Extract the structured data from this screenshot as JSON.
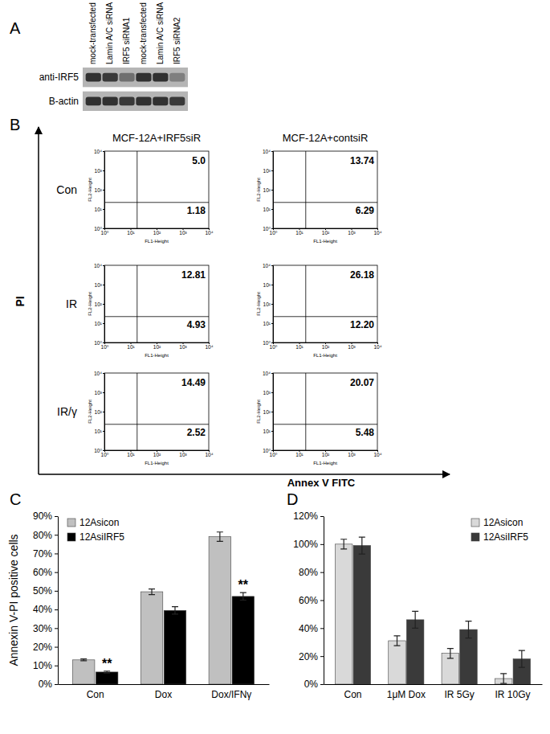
{
  "chart_data": [
    {
      "type": "blot",
      "title": "A",
      "categories": [
        "mock-transfected",
        "Lamin A/C siRNA",
        "IRF5 siRNA1",
        "mock-transfected",
        "Lamin A/C siRNA",
        "IRF5 siRNA2"
      ],
      "series": [
        {
          "name": "anti-IRF5",
          "values": [
            0.85,
            0.8,
            0.45,
            0.85,
            0.85,
            0.35
          ]
        },
        {
          "name": "B-actin",
          "values": [
            0.85,
            0.85,
            0.8,
            0.85,
            0.85,
            0.8
          ]
        }
      ]
    },
    {
      "type": "flow_cytometry",
      "title": "B",
      "x_label": "Annex V FITC",
      "y_label": "PI",
      "plot_x_label": "FL1-Height",
      "plot_y_label": "FL2-Height",
      "columns": [
        "MCF-12A+IRF5siR",
        "MCF-12A+contsiR"
      ],
      "rows": [
        "Con",
        "IR",
        "IR/γ"
      ],
      "log": true,
      "xlim": [
        1,
        10000
      ],
      "ylim": [
        1,
        10000
      ],
      "xticks": [
        {
          "value": 1,
          "label": "10⁰"
        },
        {
          "value": 10,
          "label": "10¹"
        },
        {
          "value": 100,
          "label": "10²"
        },
        {
          "value": 1000,
          "label": "10³"
        },
        {
          "value": 10000,
          "label": "10⁴"
        }
      ],
      "yticks": [
        {
          "value": 1,
          "label": "10⁰"
        },
        {
          "value": 10,
          "label": "10¹"
        },
        {
          "value": 100,
          "label": "10²"
        },
        {
          "value": 1000,
          "label": "10³"
        },
        {
          "value": 10000,
          "label": "10⁴"
        }
      ],
      "gate": {
        "x": 18,
        "y": 22
      },
      "data_labels": true,
      "cells": [
        [
          {
            "values": [
              5.0,
              1.18
            ],
            "value_labels": [
              "5.0",
              "1.18"
            ]
          },
          {
            "values": [
              13.74,
              6.29
            ],
            "value_labels": [
              "13.74",
              "6.29"
            ]
          }
        ],
        [
          {
            "values": [
              12.81,
              4.93
            ],
            "value_labels": [
              "12.81",
              "4.93"
            ]
          },
          {
            "values": [
              26.18,
              12.2
            ],
            "value_labels": [
              "26.18",
              "12.20"
            ]
          }
        ],
        [
          {
            "values": [
              14.49,
              2.52
            ],
            "value_labels": [
              "14.49",
              "2.52"
            ]
          },
          {
            "values": [
              20.07,
              5.48
            ],
            "value_labels": [
              "20.07",
              "5.48"
            ]
          }
        ]
      ]
    },
    {
      "type": "bar",
      "title": "C",
      "y_label": "Annexin V-PI positive cells",
      "categories": [
        "Con",
        "Dox",
        "Dox/IFNγ"
      ],
      "series": [
        {
          "name": "12Asicon",
          "color": "#c0c0c0",
          "values": [
            13,
            49.5,
            79
          ],
          "errors": [
            0.5,
            1.5,
            2.5
          ]
        },
        {
          "name": "12AsiIRF5",
          "color": "#000000",
          "values": [
            6.5,
            39.5,
            47
          ],
          "errors": [
            0.5,
            2,
            2
          ]
        }
      ],
      "ylim": [
        0,
        90
      ],
      "yticks": [
        {
          "value": 0,
          "label": "0%"
        },
        {
          "value": 10,
          "label": "10%"
        },
        {
          "value": 20,
          "label": "20%"
        },
        {
          "value": 30,
          "label": "30%"
        },
        {
          "value": 40,
          "label": "40%"
        },
        {
          "value": 50,
          "label": "50%"
        },
        {
          "value": 60,
          "label": "60%"
        },
        {
          "value": 70,
          "label": "70%"
        },
        {
          "value": 80,
          "label": "80%"
        },
        {
          "value": 90,
          "label": "90%"
        }
      ],
      "legend": "top-left",
      "annotations": [
        {
          "text": "**",
          "category": "Con",
          "series": "12AsiIRF5"
        },
        {
          "text": "**",
          "category": "Dox/IFNγ",
          "series": "12AsiIRF5"
        }
      ]
    },
    {
      "type": "bar",
      "title": "D",
      "categories": [
        "Con",
        "1μM Dox",
        "IR 5Gy",
        "IR 10Gy"
      ],
      "series": [
        {
          "name": "12Asicon",
          "color": "#d9d9d9",
          "values": [
            100,
            31,
            22,
            4
          ],
          "errors": [
            3.5,
            3.5,
            3.5,
            3.5
          ]
        },
        {
          "name": "12AsiIRF5",
          "color": "#3a3a3a",
          "values": [
            99,
            46,
            39,
            18
          ],
          "errors": [
            6,
            6,
            6,
            6
          ]
        }
      ],
      "ylim": [
        0,
        120
      ],
      "yticks": [
        {
          "value": 0,
          "label": "0%"
        },
        {
          "value": 20,
          "label": "20%"
        },
        {
          "value": 40,
          "label": "40%"
        },
        {
          "value": 60,
          "label": "60%"
        },
        {
          "value": 80,
          "label": "80%"
        },
        {
          "value": 100,
          "label": "100%"
        },
        {
          "value": 120,
          "label": "120%"
        }
      ],
      "legend": "top-right"
    }
  ]
}
